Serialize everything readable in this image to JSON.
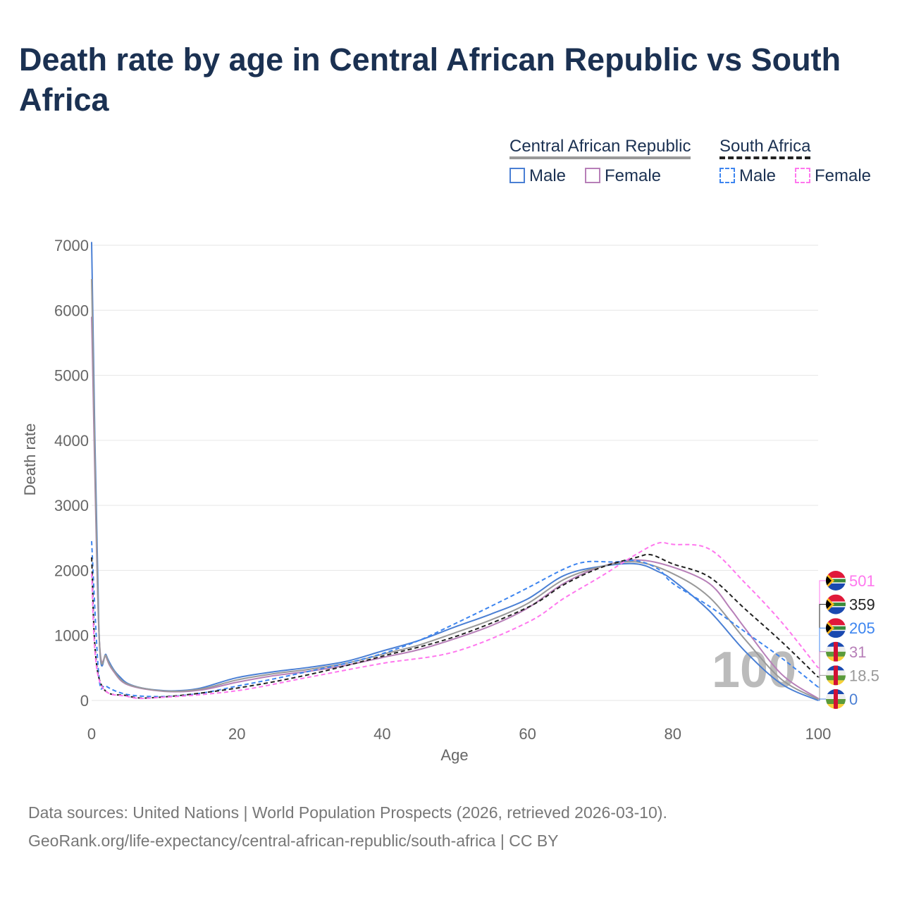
{
  "title": "Death rate by age in Central African Republic vs South Africa",
  "legend": {
    "group1": "Central African Republic",
    "group2": "South Africa",
    "male": "Male",
    "female": "Female"
  },
  "footer": {
    "line1": "Data sources: United Nations | World Population Prospects (2026, retrieved 2026-03-10).",
    "line2": "GeoRank.org/life-expectancy/central-african-republic/south-africa | CC BY"
  },
  "watermark": "100",
  "chart_data": {
    "type": "line",
    "xlabel": "Age",
    "ylabel": "Death rate",
    "xlim": [
      0,
      100
    ],
    "ylim": [
      0,
      7000
    ],
    "xticks": [
      "0",
      "20",
      "40",
      "60",
      "80",
      "100"
    ],
    "yticks": [
      "0",
      "1000",
      "2000",
      "3000",
      "4000",
      "5000",
      "6000",
      "7000"
    ],
    "series": [
      {
        "name": "Central African Republic Male",
        "color": "#4a7fd4",
        "dash": false,
        "end_label": "0",
        "x": [
          0,
          1,
          2,
          3,
          4,
          5,
          7,
          10,
          12,
          15,
          20,
          25,
          30,
          35,
          40,
          45,
          50,
          55,
          60,
          65,
          70,
          75,
          78,
          80,
          85,
          90,
          95,
          100
        ],
        "y": [
          7050,
          1100,
          700,
          480,
          350,
          260,
          190,
          150,
          150,
          190,
          350,
          440,
          510,
          600,
          760,
          920,
          1130,
          1330,
          1560,
          1920,
          2060,
          2100,
          1980,
          1850,
          1380,
          750,
          250,
          0
        ]
      },
      {
        "name": "Central African Republic Female",
        "color": "#b77fb8",
        "dash": false,
        "end_label": "31",
        "x": [
          0,
          1,
          2,
          3,
          5,
          10,
          15,
          20,
          25,
          30,
          35,
          40,
          45,
          50,
          55,
          60,
          65,
          70,
          75,
          80,
          85,
          88,
          90,
          95,
          100
        ],
        "y": [
          5900,
          1080,
          670,
          450,
          240,
          140,
          160,
          280,
          380,
          450,
          540,
          660,
          780,
          950,
          1150,
          1420,
          1800,
          2050,
          2160,
          2050,
          1800,
          1400,
          1100,
          400,
          31
        ]
      },
      {
        "name": "Central African Republic",
        "color": "#999999",
        "dash": false,
        "end_label": "18.5",
        "x": [
          0,
          1,
          2,
          3,
          5,
          10,
          15,
          20,
          25,
          30,
          35,
          40,
          45,
          50,
          55,
          60,
          65,
          70,
          75,
          80,
          85,
          90,
          95,
          100
        ],
        "y": [
          6480,
          1090,
          685,
          465,
          250,
          145,
          175,
          315,
          410,
          480,
          570,
          710,
          850,
          1040,
          1240,
          1490,
          1860,
          2055,
          2130,
          1950,
          1590,
          930,
          320,
          18.5
        ]
      },
      {
        "name": "South Africa Male",
        "color": "#3d85f0",
        "dash": true,
        "end_label": "205",
        "x": [
          0,
          1,
          2,
          5,
          10,
          15,
          20,
          25,
          30,
          35,
          40,
          45,
          50,
          55,
          60,
          65,
          68,
          72,
          75,
          78,
          80,
          85,
          90,
          95,
          100
        ],
        "y": [
          2450,
          380,
          220,
          90,
          60,
          110,
          220,
          330,
          450,
          570,
          720,
          920,
          1180,
          1450,
          1730,
          2020,
          2130,
          2130,
          2150,
          2020,
          1800,
          1450,
          1050,
          650,
          205
        ]
      },
      {
        "name": "South Africa",
        "color": "#222222",
        "dash": true,
        "end_label": "359",
        "x": [
          0,
          1,
          5,
          10,
          20,
          30,
          40,
          50,
          60,
          65,
          70,
          75,
          77,
          80,
          85,
          90,
          95,
          100
        ],
        "y": [
          2200,
          350,
          70,
          55,
          190,
          400,
          680,
          980,
          1430,
          1780,
          2040,
          2200,
          2240,
          2100,
          1900,
          1400,
          900,
          359
        ]
      },
      {
        "name": "South Africa Female",
        "color": "#ff77ee",
        "dash": true,
        "end_label": "501",
        "x": [
          0,
          1,
          5,
          10,
          20,
          30,
          40,
          50,
          60,
          65,
          70,
          75,
          78,
          80,
          85,
          90,
          95,
          100
        ],
        "y": [
          1950,
          330,
          60,
          50,
          150,
          360,
          570,
          750,
          1200,
          1570,
          1900,
          2250,
          2420,
          2400,
          2330,
          1800,
          1200,
          501
        ]
      }
    ]
  }
}
